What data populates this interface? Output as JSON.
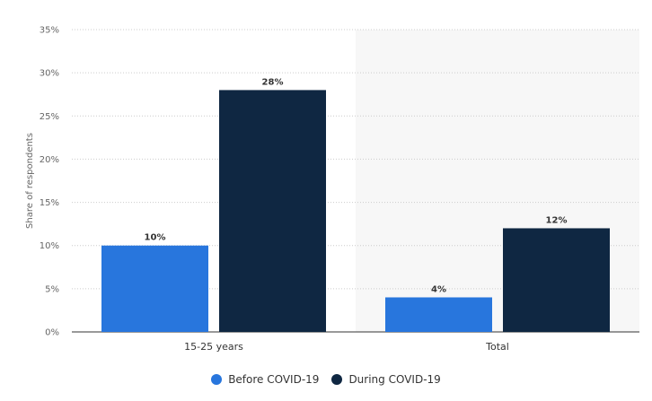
{
  "chart_data": {
    "type": "bar",
    "title": "",
    "xlabel": "",
    "ylabel": "Share of respondents",
    "categories": [
      "15-25 years",
      "Total"
    ],
    "series": [
      {
        "name": "Before COVID-19",
        "values": [
          10,
          4
        ],
        "color": "#2876dd"
      },
      {
        "name": "During COVID-19",
        "values": [
          28,
          12
        ],
        "color": "#0f2742"
      }
    ],
    "ylim": [
      0,
      35
    ],
    "yticks": [
      0,
      5,
      10,
      15,
      20,
      25,
      30,
      35
    ],
    "ytick_labels": [
      "0%",
      "5%",
      "10%",
      "15%",
      "20%",
      "25%",
      "30%",
      "35%"
    ],
    "value_suffix": "%",
    "grid": true,
    "legend": "bottom-center",
    "highlight_background": "#f7f7f7"
  }
}
